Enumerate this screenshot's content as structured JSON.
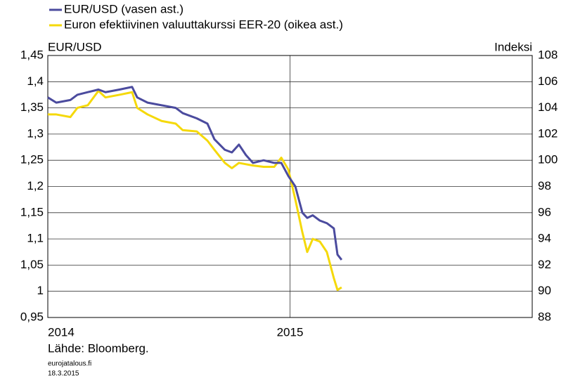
{
  "chart_data": {
    "type": "line",
    "y_label": "EUR/USD",
    "y2_label": "Indeksi",
    "source": "Lähde: Bloomberg.",
    "site": "eurojatalous.fi",
    "date": "18.3.2015",
    "grid": true,
    "legend": "top-left",
    "xlim": [
      2014,
      2016
    ],
    "xticks": [
      2014,
      2015
    ],
    "ylim": [
      0.95,
      1.45
    ],
    "yticks": [
      {
        "value": 0.95,
        "label": "0,95"
      },
      1,
      {
        "value": 1.05,
        "label": "1,05"
      },
      {
        "value": 1.1,
        "label": "1,1"
      },
      {
        "value": 1.15,
        "label": "1,15"
      },
      {
        "value": 1.2,
        "label": "1,2"
      },
      {
        "value": 1.25,
        "label": "1,25"
      },
      {
        "value": 1.3,
        "label": "1,3"
      },
      {
        "value": 1.35,
        "label": "1,35"
      },
      {
        "value": 1.4,
        "label": "1,4"
      },
      {
        "value": 1.45,
        "label": "1,45"
      }
    ],
    "y2lim": [
      88,
      108
    ],
    "y2ticks": [
      88,
      90,
      92,
      94,
      96,
      98,
      100,
      102,
      104,
      106,
      108
    ],
    "x": [
      2014.0,
      2014.035,
      2014.093,
      2014.122,
      2014.165,
      2014.209,
      2014.238,
      2014.296,
      2014.348,
      2014.369,
      2014.412,
      2014.47,
      2014.528,
      2014.557,
      2014.615,
      2014.659,
      2014.688,
      2014.731,
      2014.76,
      2014.789,
      2014.818,
      2014.847,
      2014.891,
      2014.935,
      2014.964,
      2014.993,
      2015.022,
      2015.051,
      2015.071,
      2015.094,
      2015.123,
      2015.152,
      2015.181,
      2015.196,
      2015.213
    ],
    "series": [
      {
        "name": "EUR/USD (vasen ast.)",
        "color": "#4b4b9e",
        "axis": "y",
        "values": [
          1.37,
          1.36,
          1.365,
          1.375,
          1.38,
          1.385,
          1.38,
          1.385,
          1.39,
          1.37,
          1.36,
          1.355,
          1.35,
          1.34,
          1.33,
          1.32,
          1.29,
          1.27,
          1.265,
          1.28,
          1.26,
          1.245,
          1.25,
          1.245,
          1.245,
          1.22,
          1.2,
          1.15,
          1.14,
          1.145,
          1.135,
          1.13,
          1.12,
          1.07,
          1.06
        ]
      },
      {
        "name": "Euron efektiivinen valuuttakurssi EER-20 (oikea ast.)",
        "color": "#f5d90a",
        "axis": "y2",
        "values": [
          103.5,
          103.5,
          103.3,
          104,
          104.2,
          105.3,
          104.8,
          105,
          105.2,
          104,
          103.5,
          103,
          102.8,
          102.3,
          102.2,
          101.5,
          100.8,
          99.8,
          99.4,
          99.8,
          99.7,
          99.6,
          99.5,
          99.5,
          100.2,
          99.3,
          97,
          94.5,
          93,
          94,
          93.8,
          93,
          91,
          90.1,
          90.3
        ]
      }
    ]
  }
}
